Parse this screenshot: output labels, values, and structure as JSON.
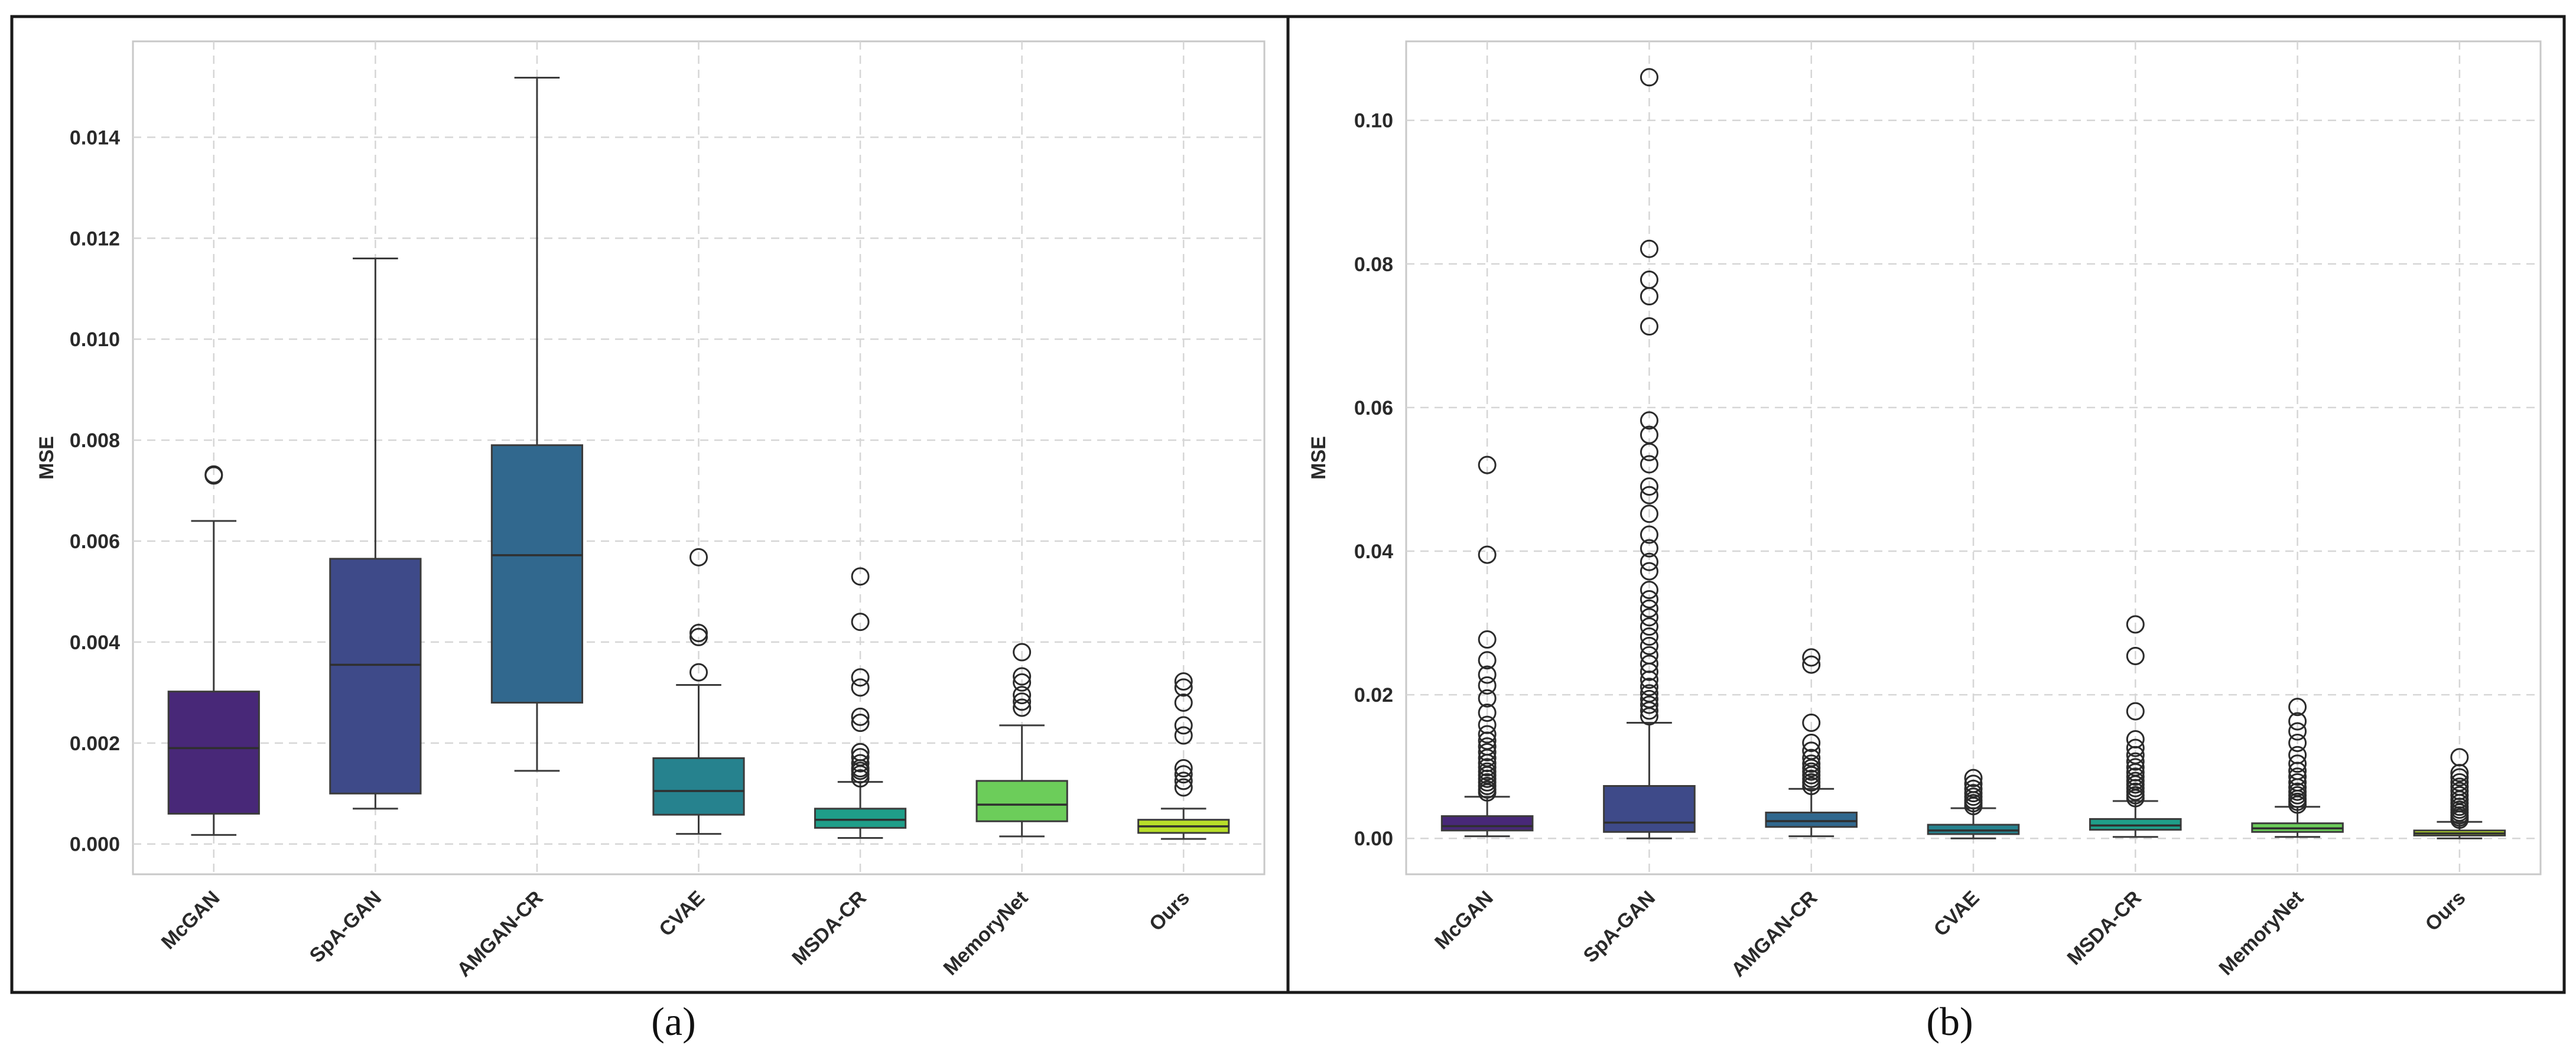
{
  "chart_data": [
    {
      "type": "box",
      "panel_label": "(a)",
      "ylabel": "MSE",
      "ylim": [
        -0.0006,
        0.0159
      ],
      "yticks": [
        0.0,
        0.002,
        0.004,
        0.006,
        0.008,
        0.01,
        0.012,
        0.014
      ],
      "ytick_labels": [
        "0.000",
        "0.002",
        "0.004",
        "0.006",
        "0.008",
        "0.010",
        "0.012",
        "0.014"
      ],
      "grid": true,
      "categories": [
        "McGAN",
        "SpA-GAN",
        "AMGAN-CR",
        "CVAE",
        "MSDA-CR",
        "MemoryNet",
        "Ours"
      ],
      "colors": [
        "#482878",
        "#3e4a89",
        "#31688e",
        "#26828e",
        "#1f9e89",
        "#6ccd5a",
        "#b8de29"
      ],
      "boxes": [
        {
          "whislo": 0.00018,
          "q1": 0.0006,
          "med": 0.0019,
          "q3": 0.00302,
          "whishi": 0.0064,
          "fliers": [
            0.0073,
            0.00732
          ]
        },
        {
          "whislo": 0.0007,
          "q1": 0.001,
          "med": 0.00355,
          "q3": 0.00565,
          "whishi": 0.0116,
          "fliers": []
        },
        {
          "whislo": 0.00145,
          "q1": 0.0028,
          "med": 0.00572,
          "q3": 0.0079,
          "whishi": 0.01518,
          "fliers": []
        },
        {
          "whislo": 0.0002,
          "q1": 0.00058,
          "med": 0.00105,
          "q3": 0.0017,
          "whishi": 0.00315,
          "fliers": [
            0.0034,
            0.0041,
            0.00418,
            0.00568
          ]
        },
        {
          "whislo": 0.00012,
          "q1": 0.00032,
          "med": 0.00048,
          "q3": 0.0007,
          "whishi": 0.00123,
          "fliers": [
            0.0013,
            0.00138,
            0.00145,
            0.0015,
            0.0016,
            0.00172,
            0.00182,
            0.0024,
            0.00252,
            0.0031,
            0.0033,
            0.0044,
            0.0053
          ]
        },
        {
          "whislo": 0.00015,
          "q1": 0.00045,
          "med": 0.00078,
          "q3": 0.00125,
          "whishi": 0.00235,
          "fliers": [
            0.0027,
            0.00282,
            0.00295,
            0.0032,
            0.00332,
            0.0038
          ]
        },
        {
          "whislo": 0.0001,
          "q1": 0.00022,
          "med": 0.00035,
          "q3": 0.00048,
          "whishi": 0.0007,
          "fliers": [
            0.00112,
            0.00125,
            0.00138,
            0.0015,
            0.00215,
            0.00235,
            0.0028,
            0.0031,
            0.00322
          ]
        }
      ]
    },
    {
      "type": "box",
      "panel_label": "(b)",
      "ylabel": "MSE",
      "ylim": [
        -0.005,
        0.111
      ],
      "yticks": [
        0.0,
        0.02,
        0.04,
        0.06,
        0.08,
        0.1
      ],
      "ytick_labels": [
        "0.00",
        "0.02",
        "0.04",
        "0.06",
        "0.08",
        "0.10"
      ],
      "grid": true,
      "categories": [
        "McGAN",
        "SpA-GAN",
        "AMGAN-CR",
        "CVAE",
        "MSDA-CR",
        "MemoryNet",
        "Ours"
      ],
      "colors": [
        "#482878",
        "#3e4a89",
        "#31688e",
        "#26828e",
        "#1f9e89",
        "#6ccd5a",
        "#b8de29"
      ],
      "boxes": [
        {
          "whislo": 0.0003,
          "q1": 0.0011,
          "med": 0.0017,
          "q3": 0.0031,
          "whishi": 0.0058,
          "fliers": [
            0.0064,
            0.0068,
            0.0073,
            0.0078,
            0.0083,
            0.0088,
            0.0093,
            0.0099,
            0.0105,
            0.0112,
            0.012,
            0.0128,
            0.0136,
            0.0145,
            0.0158,
            0.0175,
            0.0195,
            0.0213,
            0.0228,
            0.0248,
            0.0277,
            0.0395,
            0.052
          ]
        },
        {
          "whislo": 0.0,
          "q1": 0.0009,
          "med": 0.0022,
          "q3": 0.0073,
          "whishi": 0.0161,
          "fliers": [
            0.017,
            0.0178,
            0.0186,
            0.0194,
            0.0202,
            0.0211,
            0.0221,
            0.0232,
            0.0243,
            0.0255,
            0.0268,
            0.0281,
            0.0295,
            0.0308,
            0.032,
            0.0333,
            0.0346,
            0.0372,
            0.0385,
            0.0404,
            0.0423,
            0.0452,
            0.0478,
            0.049,
            0.0521,
            0.0538,
            0.0562,
            0.0582,
            0.0713,
            0.0755,
            0.0778,
            0.0821,
            0.106
          ]
        },
        {
          "whislo": 0.0003,
          "q1": 0.0016,
          "med": 0.0024,
          "q3": 0.0036,
          "whishi": 0.0069,
          "fliers": [
            0.0073,
            0.0078,
            0.0083,
            0.0088,
            0.0093,
            0.0098,
            0.0104,
            0.0112,
            0.0122,
            0.0133,
            0.0161,
            0.0242,
            0.0252
          ]
        },
        {
          "whislo": 0.0,
          "q1": 0.0006,
          "med": 0.0011,
          "q3": 0.0019,
          "whishi": 0.0042,
          "fliers": [
            0.0045,
            0.0049,
            0.0053,
            0.0058,
            0.0063,
            0.0069,
            0.0076,
            0.0084
          ]
        },
        {
          "whislo": 0.0002,
          "q1": 0.0012,
          "med": 0.0018,
          "q3": 0.0027,
          "whishi": 0.0052,
          "fliers": [
            0.0056,
            0.006,
            0.0065,
            0.007,
            0.0075,
            0.008,
            0.0086,
            0.0092,
            0.0099,
            0.0107,
            0.0116,
            0.0126,
            0.0138,
            0.0177,
            0.0254,
            0.0298
          ]
        },
        {
          "whislo": 0.0002,
          "q1": 0.0009,
          "med": 0.0014,
          "q3": 0.0021,
          "whishi": 0.0044,
          "fliers": [
            0.0047,
            0.0051,
            0.0055,
            0.006,
            0.0065,
            0.0071,
            0.0078,
            0.0086,
            0.0094,
            0.0104,
            0.0116,
            0.0133,
            0.0149,
            0.0163,
            0.0183
          ]
        },
        {
          "whislo": 0.0,
          "q1": 0.0004,
          "med": 0.0007,
          "q3": 0.0011,
          "whishi": 0.0023,
          "fliers": [
            0.0026,
            0.0029,
            0.0032,
            0.0036,
            0.004,
            0.0044,
            0.0049,
            0.0054,
            0.006,
            0.0066,
            0.0072,
            0.0078,
            0.0085,
            0.0091,
            0.0113
          ]
        }
      ]
    }
  ]
}
